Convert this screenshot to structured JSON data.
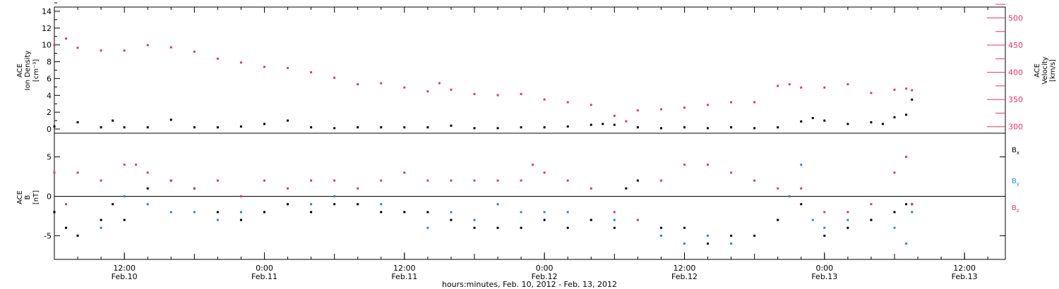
{
  "colors": {
    "density": "#000000",
    "velocity": "#ee3366",
    "bx": "#000000",
    "by": "#1e88e5",
    "bz": "#ee3366",
    "axis": "#000000"
  },
  "xaxis": {
    "label": "hours:minutes, Feb. 10, 2012 - Feb. 13, 2012",
    "range_hours": [
      0,
      81.5
    ],
    "ticks": [
      {
        "hours": 6,
        "time": "12:00",
        "date": "Feb.10"
      },
      {
        "hours": 18,
        "time": "0:00",
        "date": "Feb.11"
      },
      {
        "hours": 30,
        "time": "12:00",
        "date": "Feb.11"
      },
      {
        "hours": 42,
        "time": "0:00",
        "date": "Feb.12"
      },
      {
        "hours": 54,
        "time": "12:00",
        "date": "Feb.12"
      },
      {
        "hours": 66,
        "time": "0:00",
        "date": "Feb.13"
      },
      {
        "hours": 78,
        "time": "12:00",
        "date": "Feb.13"
      }
    ]
  },
  "chart_data": [
    {
      "type": "scatter",
      "panel": "top",
      "left_axis": {
        "label_lines": [
          "ACE",
          "Ion Density",
          "[cm⁻³]"
        ],
        "ylim": [
          -0.5,
          14.5
        ],
        "ticks": [
          0,
          2,
          4,
          6,
          8,
          10,
          12,
          14
        ]
      },
      "right_axis": {
        "label_lines": [
          "ACE",
          "Velocity",
          "[km/s]"
        ],
        "ylim": [
          288,
          520
        ],
        "ticks": [
          300,
          350,
          400,
          450,
          500
        ]
      },
      "series": [
        {
          "axis": "left",
          "x": [
            0,
            2,
            4,
            5,
            6,
            8,
            10,
            12,
            14,
            16,
            18,
            20,
            22,
            24,
            26,
            28,
            30,
            32,
            34,
            36,
            38,
            40,
            42,
            44,
            46,
            47,
            48,
            50,
            52,
            54,
            56,
            58,
            60,
            62,
            64,
            65,
            66,
            68,
            70,
            71,
            72,
            73,
            73.5
          ],
          "y": [
            0.3,
            0.8,
            0.2,
            1.0,
            0.2,
            0.2,
            1.1,
            0.2,
            0.2,
            0.3,
            0.6,
            1.0,
            0.2,
            0.1,
            0.2,
            0.2,
            0.2,
            0.2,
            0.4,
            0.1,
            0.1,
            0.2,
            0.2,
            0.3,
            0.5,
            0.6,
            0.5,
            0.2,
            0.1,
            0.2,
            0.1,
            0.2,
            0.1,
            0.2,
            0.9,
            1.3,
            1.0,
            0.6,
            0.8,
            0.6,
            1.4,
            1.7,
            3.5
          ]
        },
        {
          "axis": "right",
          "x": [
            0,
            1,
            2,
            4,
            6,
            8,
            10,
            12,
            14,
            16,
            18,
            20,
            22,
            24,
            26,
            28,
            30,
            32,
            33,
            34,
            36,
            38,
            40,
            42,
            44,
            46,
            48,
            49,
            50,
            52,
            54,
            56,
            58,
            60,
            62,
            63,
            64,
            66,
            68,
            70,
            72,
            73,
            73.5
          ],
          "y": [
            450,
            462,
            445,
            440,
            440,
            450,
            446,
            438,
            425,
            418,
            410,
            408,
            400,
            390,
            378,
            380,
            372,
            365,
            380,
            368,
            360,
            358,
            360,
            350,
            345,
            340,
            320,
            310,
            330,
            332,
            335,
            340,
            345,
            345,
            375,
            378,
            372,
            372,
            378,
            362,
            368,
            370,
            367
          ]
        }
      ]
    },
    {
      "type": "scatter",
      "panel": "bottom",
      "axis": {
        "label_lines": [
          "ACE",
          "B",
          "[nT]"
        ],
        "ylim": [
          -8,
          8
        ],
        "ticks": [
          -5,
          0,
          5
        ]
      },
      "legend": [
        "B",
        "B",
        "B"
      ],
      "legend_subscripts": [
        "x",
        "y",
        "z"
      ],
      "series": [
        {
          "name": "Bx",
          "x": [
            0,
            1,
            2,
            4,
            5,
            6,
            8,
            10,
            12,
            14,
            16,
            18,
            20,
            22,
            24,
            26,
            28,
            30,
            32,
            34,
            36,
            38,
            40,
            42,
            44,
            46,
            48,
            49,
            50,
            52,
            54,
            56,
            58,
            60,
            62,
            64,
            66,
            68,
            70,
            72,
            73,
            73.5
          ],
          "y": [
            -2,
            -4,
            -5,
            -3,
            -1,
            -3,
            1,
            2,
            1,
            -2,
            -3,
            -2,
            -1,
            -2,
            -1,
            -1,
            -2,
            -2,
            -2,
            -3,
            -4,
            -4,
            -4,
            -3,
            -4,
            -3,
            -4,
            1,
            2,
            -4,
            -4,
            -6,
            -5,
            -5,
            -3,
            -1,
            -5,
            -4,
            -3,
            -2,
            -1,
            -1
          ]
        },
        {
          "name": "By",
          "x": [
            0,
            2,
            4,
            6,
            8,
            10,
            12,
            14,
            16,
            18,
            20,
            22,
            24,
            26,
            28,
            30,
            32,
            34,
            36,
            38,
            40,
            42,
            44,
            46,
            48,
            50,
            52,
            54,
            56,
            58,
            60,
            62,
            63,
            64,
            65,
            66,
            68,
            70,
            72,
            73,
            73.5
          ],
          "y": [
            -2,
            -5,
            -4,
            0,
            -1,
            -2,
            -2,
            -3,
            -2,
            -2,
            -1,
            -1,
            0,
            -1,
            -1,
            -2,
            -4,
            -2,
            -3,
            -1,
            -2,
            -2,
            -2,
            -3,
            -3,
            -3,
            -5,
            -6,
            -5,
            -6,
            -5,
            -3,
            0,
            4,
            -3,
            -4,
            -3,
            -3,
            -4,
            -6,
            -2
          ]
        },
        {
          "name": "Bz",
          "x": [
            0,
            1,
            2,
            4,
            6,
            7,
            8,
            10,
            12,
            14,
            16,
            18,
            20,
            22,
            24,
            26,
            28,
            30,
            32,
            34,
            36,
            38,
            40,
            41,
            42,
            44,
            46,
            48,
            50,
            52,
            54,
            56,
            58,
            60,
            62,
            64,
            66,
            68,
            70,
            72,
            73,
            73.5
          ],
          "y": [
            3,
            -1,
            3,
            2,
            4,
            4,
            3,
            2,
            1,
            2,
            0,
            2,
            1,
            2,
            2,
            1,
            2,
            3,
            2,
            2,
            2,
            2,
            2,
            4,
            3,
            2,
            1,
            -2,
            -3,
            2,
            4,
            4,
            3,
            2,
            1,
            1,
            -2,
            -2,
            -1,
            3,
            5,
            -1
          ]
        }
      ]
    }
  ]
}
